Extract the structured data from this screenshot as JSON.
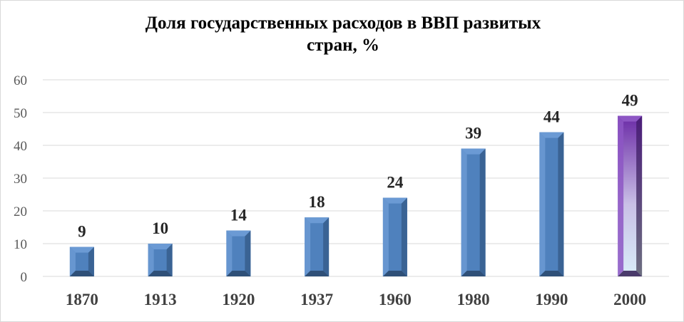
{
  "chart_data": {
    "type": "bar",
    "title_lines": [
      "Доля государственных  расходов в ВВП развитых",
      "стран, %"
    ],
    "xlabel": "",
    "ylabel": "",
    "categories": [
      "1870",
      "1913",
      "1920",
      "1937",
      "1960",
      "1980",
      "1990",
      "2000"
    ],
    "values": [
      9,
      10,
      14,
      18,
      24,
      39,
      44,
      49
    ],
    "data_labels": [
      "9",
      "10",
      "14",
      "18",
      "24",
      "39",
      "44",
      "49"
    ],
    "ylim": [
      0,
      60
    ],
    "yticks": [
      0,
      10,
      20,
      30,
      40,
      50,
      60
    ],
    "grid": true,
    "legend": "none",
    "colors": {
      "bar": "#4f81bd",
      "highlight_bar": "#7030a0",
      "grid": "#d9d9d9"
    }
  }
}
